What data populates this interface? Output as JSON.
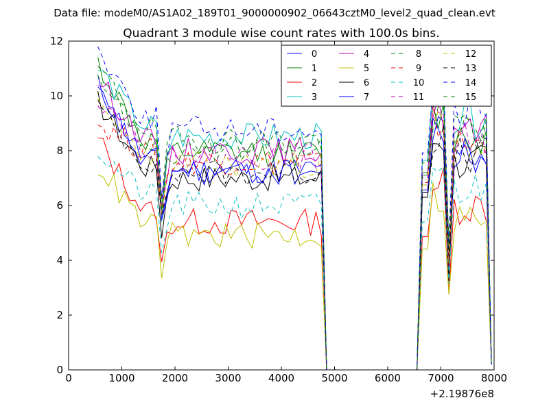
{
  "chart_data": {
    "type": "line",
    "suptitle": "Data file: modeM0/AS1A02_189T01_9000000902_06643cztM0_level2_quad_clean.evt",
    "title": "Quadrant 3 module wise count rates with 100.0s bins.",
    "xlabel": "",
    "ylabel": "",
    "x_offset_label": "+2.19876e8",
    "xlim": [
      0,
      8000
    ],
    "ylim": [
      0,
      12
    ],
    "xticks": [
      "0",
      "1000",
      "2000",
      "3000",
      "4000",
      "5000",
      "6000",
      "7000",
      "8000"
    ],
    "yticks": [
      "0",
      "2",
      "4",
      "6",
      "8",
      "10",
      "12"
    ],
    "grid": false,
    "legend_position": "top-right",
    "legend_columns": 4,
    "gap": {
      "start": 4850,
      "end": 6650,
      "value": 0
    },
    "series": [
      {
        "name": "0",
        "color": "#0000ff",
        "dash": "solid",
        "level": 7.3,
        "start": 10.4,
        "dip": 5.5,
        "seed": 11
      },
      {
        "name": "1",
        "color": "#008000",
        "dash": "solid",
        "level": 7.9,
        "start": 11.2,
        "dip": 5.8,
        "seed": 12
      },
      {
        "name": "2",
        "color": "#ff0000",
        "dash": "solid",
        "level": 5.4,
        "start": 8.4,
        "dip": 3.8,
        "seed": 13
      },
      {
        "name": "3",
        "color": "#00bfbf",
        "dash": "solid",
        "level": 8.5,
        "start": 11.0,
        "dip": 5.2,
        "seed": 14
      },
      {
        "name": "4",
        "color": "#bf00bf",
        "dash": "solid",
        "level": 8.0,
        "start": 10.6,
        "dip": 6.0,
        "seed": 15
      },
      {
        "name": "5",
        "color": "#bfbf00",
        "dash": "solid",
        "level": 4.9,
        "start": 7.5,
        "dip": 3.6,
        "seed": 16
      },
      {
        "name": "6",
        "color": "#000000",
        "dash": "solid",
        "level": 7.0,
        "start": 9.8,
        "dip": 5.0,
        "seed": 17
      },
      {
        "name": "7",
        "color": "#0000ff",
        "dash": "solid",
        "level": 7.2,
        "start": 10.1,
        "dip": 5.6,
        "seed": 18
      },
      {
        "name": "8",
        "color": "#008000",
        "dash": "dashed",
        "level": 8.4,
        "start": 11.0,
        "dip": 6.3,
        "seed": 19
      },
      {
        "name": "9",
        "color": "#ff0000",
        "dash": "dashed",
        "level": 7.6,
        "start": 9.0,
        "dip": 5.6,
        "seed": 20
      },
      {
        "name": "10",
        "color": "#00bfbf",
        "dash": "dashed",
        "level": 6.0,
        "start": 8.0,
        "dip": 4.2,
        "seed": 21
      },
      {
        "name": "11",
        "color": "#bf00bf",
        "dash": "dashed",
        "level": 7.8,
        "start": 10.0,
        "dip": 5.8,
        "seed": 22
      },
      {
        "name": "12",
        "color": "#bfbf00",
        "dash": "dashed",
        "level": 7.5,
        "start": 9.5,
        "dip": 5.5,
        "seed": 23
      },
      {
        "name": "13",
        "color": "#000000",
        "dash": "dashed",
        "level": 7.2,
        "start": 9.6,
        "dip": 5.4,
        "seed": 24
      },
      {
        "name": "14",
        "color": "#0000ff",
        "dash": "dashed",
        "level": 8.8,
        "start": 11.7,
        "dip": 6.5,
        "seed": 25
      },
      {
        "name": "15",
        "color": "#008000",
        "dash": "dashed",
        "level": 8.0,
        "start": 10.8,
        "dip": 6.0,
        "seed": 26
      }
    ]
  }
}
